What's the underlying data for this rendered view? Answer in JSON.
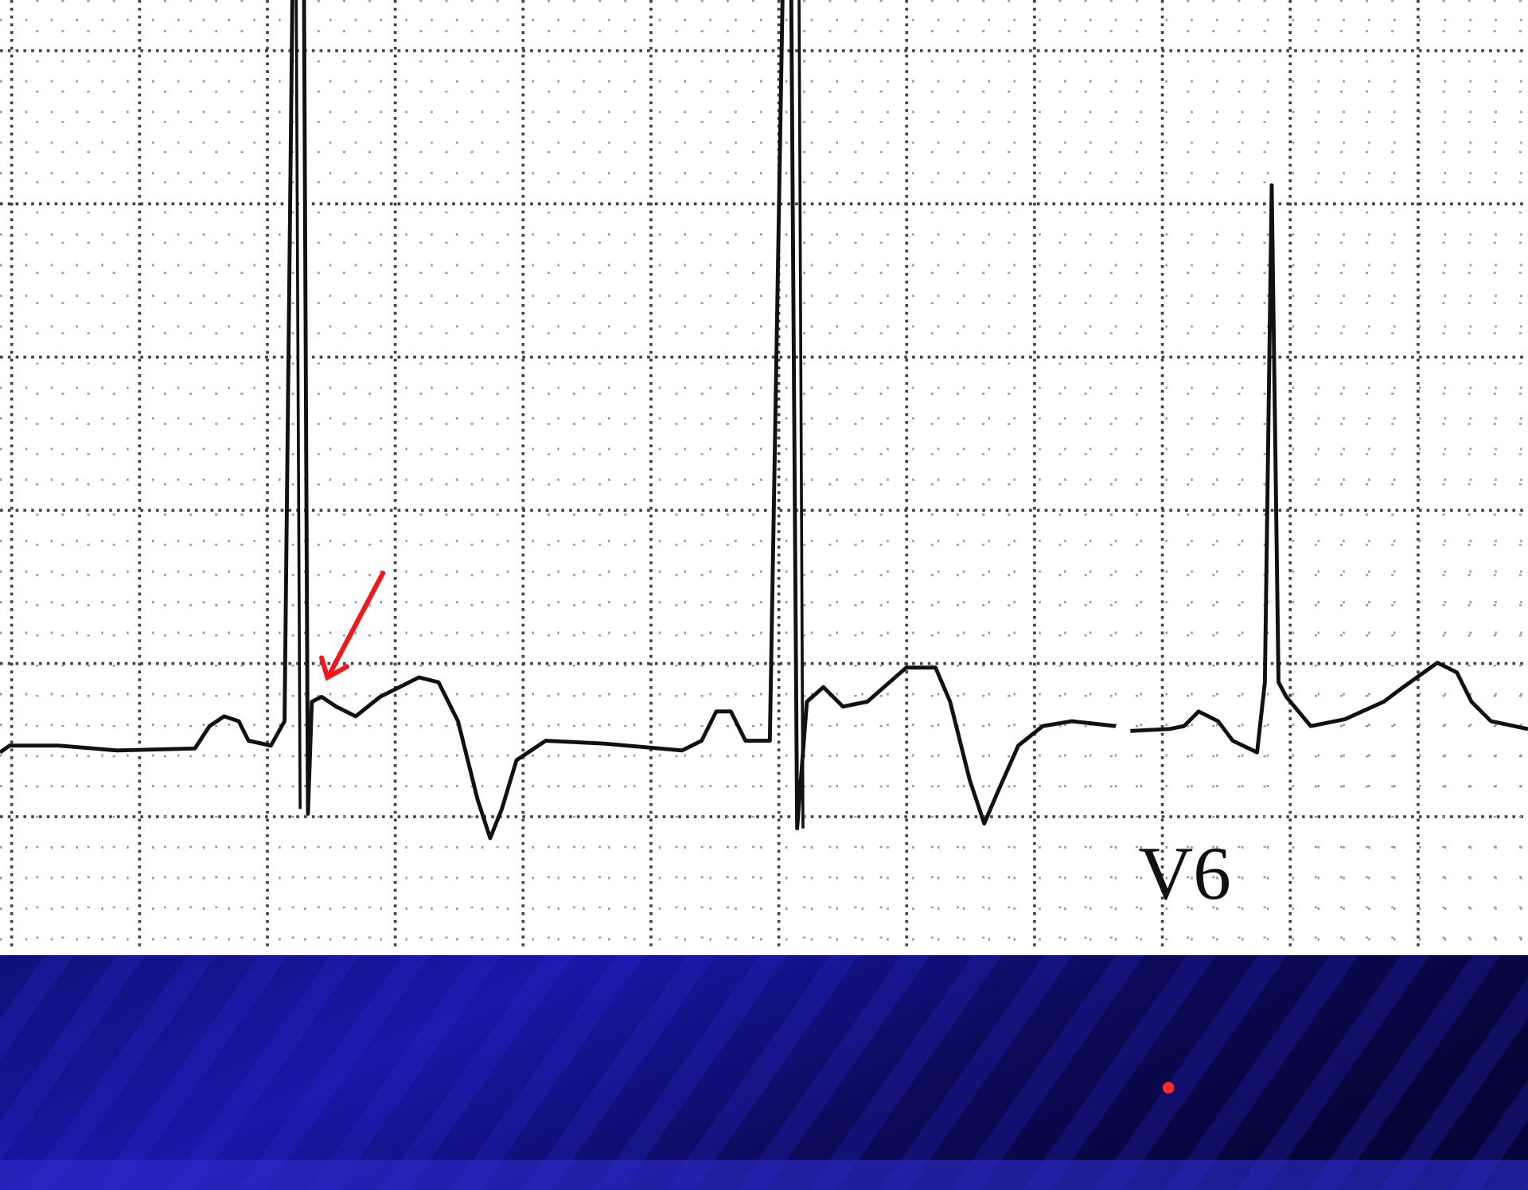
{
  "lead_label": "V6"
}
